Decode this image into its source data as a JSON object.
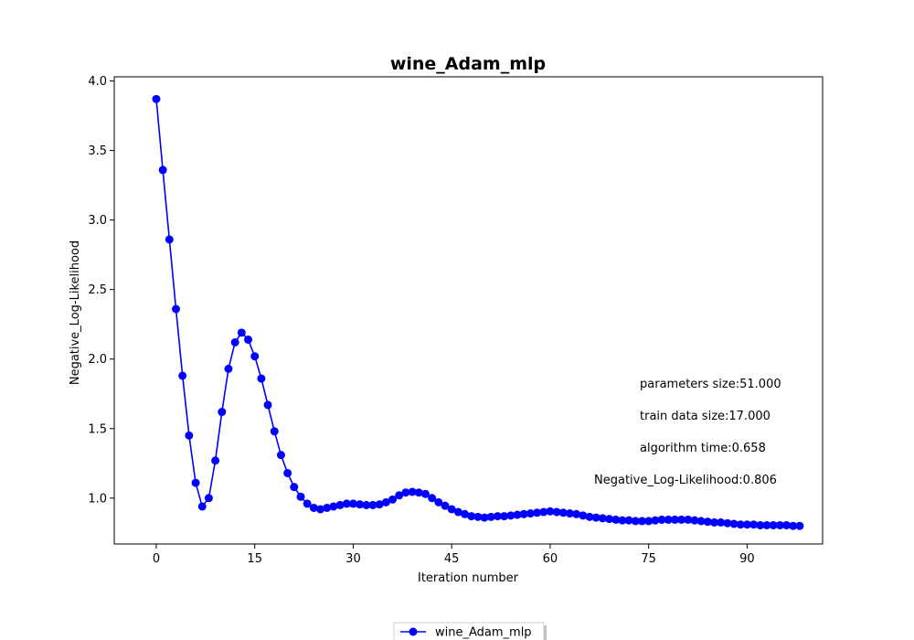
{
  "chart_data": {
    "type": "line",
    "title": "wine_Adam_mlp",
    "xlabel": "Iteration number",
    "ylabel": "Negative_Log-Likelihood",
    "xlim": [
      -6.4,
      101.5
    ],
    "ylim": [
      0.67,
      4.03
    ],
    "xticks": [
      0,
      15,
      30,
      45,
      60,
      75,
      90
    ],
    "yticks": [
      1.0,
      1.5,
      2.0,
      2.5,
      3.0,
      3.5,
      4.0
    ],
    "ytick_labels": [
      "1.0",
      "1.5",
      "2.0",
      "2.5",
      "3.0",
      "3.5",
      "4.0"
    ],
    "grid": false,
    "legend": "bottom-center",
    "series": [
      {
        "name": "wine_Adam_mlp",
        "color": "#0000ff",
        "marker": "circle",
        "x": [
          0,
          1,
          2,
          3,
          4,
          5,
          6,
          7,
          8,
          9,
          10,
          11,
          12,
          13,
          14,
          15,
          16,
          17,
          18,
          19,
          20,
          21,
          22,
          23,
          24,
          25,
          26,
          27,
          28,
          29,
          30,
          31,
          32,
          33,
          34,
          35,
          36,
          37,
          38,
          39,
          40,
          41,
          42,
          43,
          44,
          45,
          46,
          47,
          48,
          49,
          50,
          51,
          52,
          53,
          54,
          55,
          56,
          57,
          58,
          59,
          60,
          61,
          62,
          63,
          64,
          65,
          66,
          67,
          68,
          69,
          70,
          71,
          72,
          73,
          74,
          75,
          76,
          77,
          78,
          79,
          80,
          81,
          82,
          83,
          84,
          85,
          86,
          87,
          88,
          89,
          90,
          91,
          92,
          93,
          94,
          95,
          96,
          97,
          98
        ],
        "y": [
          3.87,
          3.36,
          2.86,
          2.36,
          1.88,
          1.45,
          1.11,
          0.94,
          1.0,
          1.27,
          1.62,
          1.93,
          2.12,
          2.19,
          2.14,
          2.02,
          1.86,
          1.67,
          1.48,
          1.31,
          1.18,
          1.08,
          1.01,
          0.96,
          0.93,
          0.92,
          0.93,
          0.94,
          0.95,
          0.96,
          0.96,
          0.955,
          0.95,
          0.95,
          0.955,
          0.97,
          0.99,
          1.02,
          1.04,
          1.045,
          1.04,
          1.03,
          1.0,
          0.97,
          0.945,
          0.92,
          0.9,
          0.885,
          0.87,
          0.865,
          0.86,
          0.865,
          0.87,
          0.87,
          0.875,
          0.88,
          0.885,
          0.89,
          0.895,
          0.9,
          0.905,
          0.9,
          0.895,
          0.89,
          0.885,
          0.875,
          0.865,
          0.86,
          0.855,
          0.85,
          0.845,
          0.84,
          0.84,
          0.835,
          0.835,
          0.835,
          0.84,
          0.845,
          0.845,
          0.845,
          0.845,
          0.845,
          0.84,
          0.835,
          0.83,
          0.825,
          0.825,
          0.82,
          0.815,
          0.81,
          0.81,
          0.81,
          0.805,
          0.805,
          0.805,
          0.805,
          0.805,
          0.8,
          0.8
        ]
      }
    ],
    "annotations": [
      "parameters size:51.000",
      "train data size:17.000",
      "algorithm time:0.658",
      "Negative_Log-Likelihood:0.806"
    ]
  }
}
